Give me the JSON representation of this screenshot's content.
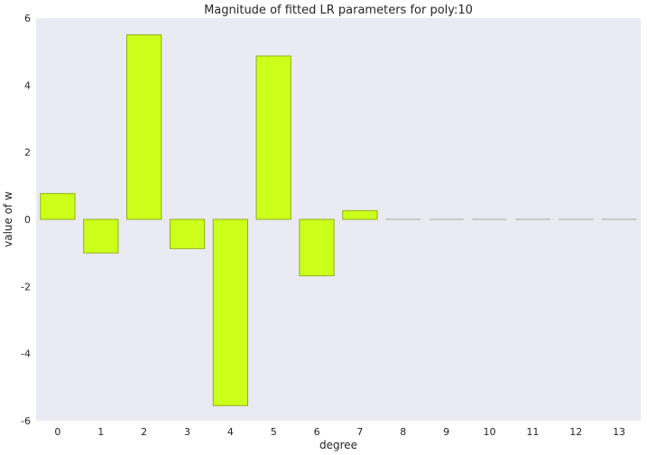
{
  "chart_data": {
    "type": "bar",
    "title": "Magnitude of fitted LR parameters for poly:10",
    "xlabel": "degree",
    "ylabel": "value of w",
    "categories": [
      "0",
      "1",
      "2",
      "3",
      "4",
      "5",
      "6",
      "7",
      "8",
      "9",
      "10",
      "11",
      "12",
      "13"
    ],
    "values": [
      0.77,
      -1.0,
      5.5,
      -0.87,
      -5.55,
      4.87,
      -1.68,
      0.26,
      0,
      0,
      0,
      0,
      0,
      0
    ],
    "ylim": [
      -6,
      6
    ],
    "yticks": [
      -6,
      -4,
      -2,
      0,
      2,
      4,
      6
    ],
    "grid": false,
    "legend": "none",
    "colors": {
      "bar_fill": "#ccff1a",
      "bar_edge": "#8fb01a",
      "zero_bar": "#c8c8c8",
      "plot_background": "#eaeaf2",
      "text": "#262626"
    }
  }
}
